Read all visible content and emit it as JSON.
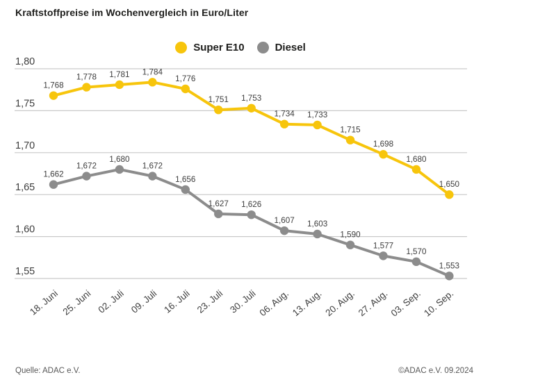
{
  "title": "Kraftstoffpreise im Wochenvergleich in Euro/Liter",
  "footer": {
    "source": "Quelle: ADAC e.V.",
    "copyright": "©ADAC e.V. 09.2024"
  },
  "colors": {
    "super_e10": "#F7C50C",
    "diesel": "#8C8C8C",
    "gridline": "#c9c9c9",
    "axis_text": "#3d3d3d",
    "title_text": "#1d1d1b"
  },
  "chart_data": {
    "type": "line",
    "title": "Kraftstoffpreise im Wochenvergleich in Euro/Liter",
    "categories": [
      "18. Juni",
      "25. Juni",
      "02. Juli",
      "09. Juli",
      "16. Juli",
      "23. Juli",
      "30. Juli",
      "06. Aug.",
      "13. Aug.",
      "20. Aug.",
      "27. Aug.",
      "03. Sep.",
      "10. Sep."
    ],
    "series": [
      {
        "name": "Super E10",
        "color": "#F7C50C",
        "values": [
          1.768,
          1.778,
          1.781,
          1.784,
          1.776,
          1.751,
          1.753,
          1.734,
          1.733,
          1.715,
          1.698,
          1.68,
          1.65
        ]
      },
      {
        "name": "Diesel",
        "color": "#8C8C8C",
        "values": [
          1.662,
          1.672,
          1.68,
          1.672,
          1.656,
          1.627,
          1.626,
          1.607,
          1.603,
          1.59,
          1.577,
          1.57,
          1.553
        ]
      }
    ],
    "xlabel": "",
    "ylabel": "",
    "ylim": [
      1.55,
      1.8
    ],
    "yticks": [
      1.8,
      1.75,
      1.7,
      1.65,
      1.6,
      1.55
    ],
    "ytick_labels": [
      "1,80",
      "1,75",
      "1,70",
      "1,65",
      "1,60",
      "1,55"
    ],
    "decimal_separator": ",",
    "grid": true,
    "legend_position": "top-center",
    "point_labels_visible": true
  }
}
